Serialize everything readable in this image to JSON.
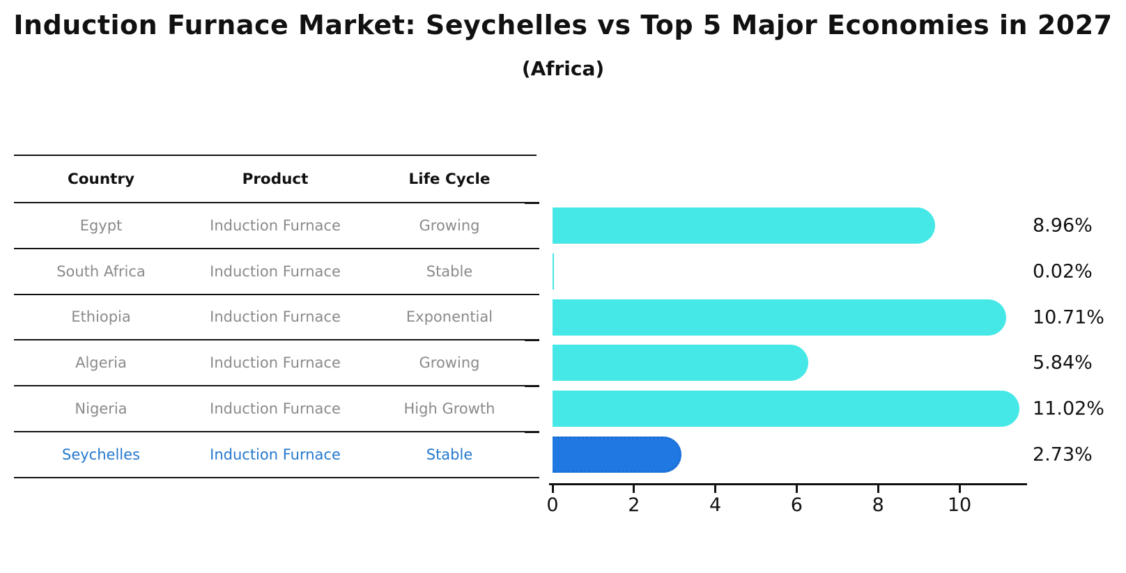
{
  "title": "Induction Furnace Market: Seychelles vs Top 5 Major Economies in 2027",
  "subtitle": "(Africa)",
  "table": {
    "headers": {
      "country": "Country",
      "product": "Product",
      "life_cycle": "Life Cycle"
    },
    "rows": [
      {
        "country": "Egypt",
        "product": "Induction Furnace",
        "life_cycle": "Growing"
      },
      {
        "country": "South Africa",
        "product": "Induction Furnace",
        "life_cycle": "Stable"
      },
      {
        "country": "Ethiopia",
        "product": "Induction Furnace",
        "life_cycle": "Exponential"
      },
      {
        "country": "Algeria",
        "product": "Induction Furnace",
        "life_cycle": "Growing"
      },
      {
        "country": "Nigeria",
        "product": "Induction Furnace",
        "life_cycle": "High Growth"
      },
      {
        "country": "Seychelles",
        "product": "Induction Furnace",
        "life_cycle": "Stable"
      }
    ],
    "highlight_row": "Seychelles"
  },
  "chart_data": {
    "type": "bar",
    "orientation": "horizontal",
    "categories": [
      "Egypt",
      "South Africa",
      "Ethiopia",
      "Algeria",
      "Nigeria",
      "Seychelles"
    ],
    "values": [
      8.96,
      0.02,
      10.71,
      5.84,
      11.02,
      2.73
    ],
    "value_labels": [
      "8.96%",
      "0.02%",
      "10.71%",
      "5.84%",
      "11.02%",
      "2.73%"
    ],
    "x_ticks": [
      0,
      2,
      4,
      6,
      8,
      10
    ],
    "xlim": [
      0,
      11.6
    ],
    "grid": false,
    "legend": "none",
    "bar_color": "#45E8E6",
    "highlight_bar_color": "#2079E2",
    "highlight_index": 5,
    "highlight_style": "dotted-edge"
  }
}
